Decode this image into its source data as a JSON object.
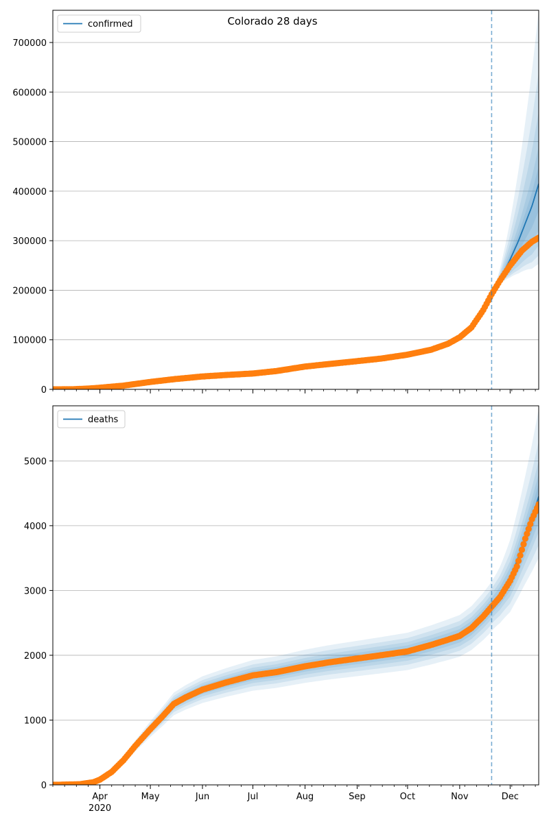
{
  "figure": {
    "title": "Colorado 28 days"
  },
  "x_axis": {
    "type": "date",
    "range": [
      "2020-03-04",
      "2020-12-18"
    ],
    "ticks": [
      {
        "date": "2020-04-01",
        "label": "Apr",
        "sublabel": "2020"
      },
      {
        "date": "2020-05-01",
        "label": "May"
      },
      {
        "date": "2020-06-01",
        "label": "Jun"
      },
      {
        "date": "2020-07-01",
        "label": "Jul"
      },
      {
        "date": "2020-08-01",
        "label": "Aug"
      },
      {
        "date": "2020-09-01",
        "label": "Sep"
      },
      {
        "date": "2020-10-01",
        "label": "Oct"
      },
      {
        "date": "2020-11-01",
        "label": "Nov"
      },
      {
        "date": "2020-12-01",
        "label": "Dec"
      }
    ],
    "forecast_marker_date": "2020-11-20"
  },
  "colors": {
    "model_line": "#1f77b4",
    "observed": "#ff7f0e",
    "band": "#1f77b4",
    "marker_line": "#1f77b4",
    "grid": "#b0b0b0"
  },
  "chart_data": [
    {
      "type": "line",
      "legend": "confirmed",
      "legend_position": "top-left",
      "ylim": [
        0,
        765000
      ],
      "yticks": [
        {
          "value": 0,
          "label": "0"
        },
        {
          "value": 100000,
          "label": "100000"
        },
        {
          "value": 200000,
          "label": "200000"
        },
        {
          "value": 300000,
          "label": "300000"
        },
        {
          "value": 400000,
          "label": "400000"
        },
        {
          "value": 500000,
          "label": "500000"
        },
        {
          "value": 600000,
          "label": "600000"
        },
        {
          "value": 700000,
          "label": "700000"
        }
      ],
      "grid_y": true,
      "knots": [
        [
          "2020-03-04",
          0
        ],
        [
          "2020-03-15",
          150
        ],
        [
          "2020-03-25",
          1500
        ],
        [
          "2020-04-01",
          3300
        ],
        [
          "2020-04-15",
          7500
        ],
        [
          "2020-05-01",
          15000
        ],
        [
          "2020-05-15",
          20500
        ],
        [
          "2020-06-01",
          26000
        ],
        [
          "2020-06-15",
          29000
        ],
        [
          "2020-07-01",
          32000
        ],
        [
          "2020-07-15",
          37000
        ],
        [
          "2020-08-01",
          46000
        ],
        [
          "2020-08-15",
          51000
        ],
        [
          "2020-09-01",
          57000
        ],
        [
          "2020-09-15",
          62000
        ],
        [
          "2020-10-01",
          70000
        ],
        [
          "2020-10-15",
          80000
        ],
        [
          "2020-10-25",
          92000
        ],
        [
          "2020-11-01",
          105000
        ],
        [
          "2020-11-08",
          125000
        ],
        [
          "2020-11-15",
          160000
        ],
        [
          "2020-11-20",
          192000
        ],
        [
          "2020-11-25",
          220000
        ],
        [
          "2020-12-01",
          250000
        ],
        [
          "2020-12-08",
          280000
        ],
        [
          "2020-12-14",
          298000
        ],
        [
          "2020-12-18",
          306000
        ]
      ],
      "model_forecast": [
        [
          "2020-11-20",
          193000
        ],
        [
          "2020-11-25",
          222000
        ],
        [
          "2020-12-01",
          262000
        ],
        [
          "2020-12-06",
          300000
        ],
        [
          "2020-12-10",
          335000
        ],
        [
          "2020-12-14",
          370000
        ],
        [
          "2020-12-18",
          415000
        ]
      ],
      "bands": [
        {
          "level": "outer",
          "upper": [
            765000
          ],
          "lower": [
            253000
          ]
        },
        {
          "level": "wide",
          "upper": [
            640000
          ],
          "lower": [
            270000
          ]
        },
        {
          "level": "mid",
          "upper": [
            560000
          ],
          "lower": [
            290000
          ]
        },
        {
          "level": "inner",
          "upper": [
            490000
          ],
          "lower": [
            320000
          ]
        },
        {
          "level": "core",
          "upper": [
            450000
          ],
          "lower": [
            360000
          ]
        }
      ],
      "band_spread_fraction": [
        0,
        0,
        0,
        0,
        0
      ],
      "band_start": "2020-11-20"
    },
    {
      "type": "line",
      "legend": "deaths",
      "legend_position": "top-left",
      "ylim": [
        0,
        5850
      ],
      "yticks": [
        {
          "value": 0,
          "label": "0"
        },
        {
          "value": 1000,
          "label": "1000"
        },
        {
          "value": 2000,
          "label": "2000"
        },
        {
          "value": 3000,
          "label": "3000"
        },
        {
          "value": 4000,
          "label": "4000"
        },
        {
          "value": 5000,
          "label": "5000"
        }
      ],
      "grid_y": true,
      "knots": [
        [
          "2020-03-04",
          0
        ],
        [
          "2020-03-20",
          10
        ],
        [
          "2020-03-28",
          40
        ],
        [
          "2020-04-01",
          80
        ],
        [
          "2020-04-08",
          200
        ],
        [
          "2020-04-15",
          380
        ],
        [
          "2020-04-22",
          600
        ],
        [
          "2020-05-01",
          860
        ],
        [
          "2020-05-08",
          1050
        ],
        [
          "2020-05-15",
          1250
        ],
        [
          "2020-05-22",
          1350
        ],
        [
          "2020-06-01",
          1470
        ],
        [
          "2020-06-15",
          1580
        ],
        [
          "2020-07-01",
          1690
        ],
        [
          "2020-07-15",
          1740
        ],
        [
          "2020-08-01",
          1830
        ],
        [
          "2020-08-15",
          1890
        ],
        [
          "2020-09-01",
          1950
        ],
        [
          "2020-09-15",
          2000
        ],
        [
          "2020-10-01",
          2060
        ],
        [
          "2020-10-15",
          2160
        ],
        [
          "2020-10-25",
          2240
        ],
        [
          "2020-11-01",
          2300
        ],
        [
          "2020-11-08",
          2420
        ],
        [
          "2020-11-15",
          2600
        ],
        [
          "2020-11-20",
          2750
        ],
        [
          "2020-11-25",
          2900
        ],
        [
          "2020-12-01",
          3150
        ],
        [
          "2020-12-05",
          3370
        ],
        [
          "2020-12-10",
          3800
        ],
        [
          "2020-12-14",
          4100
        ],
        [
          "2020-12-18",
          4330
        ]
      ],
      "model_forecast": [
        [
          "2020-11-20",
          2760
        ],
        [
          "2020-11-25",
          2920
        ],
        [
          "2020-12-01",
          3180
        ],
        [
          "2020-12-06",
          3520
        ],
        [
          "2020-12-10",
          3820
        ],
        [
          "2020-12-14",
          4120
        ],
        [
          "2020-12-18",
          4450
        ]
      ],
      "bands": [
        {
          "level": "outer",
          "upper": [
            5800
          ],
          "lower": [
            3500
          ]
        },
        {
          "level": "wide",
          "upper": [
            5300
          ],
          "lower": [
            3700
          ]
        },
        {
          "level": "mid",
          "upper": [
            5000
          ],
          "lower": [
            3900
          ]
        },
        {
          "level": "inner",
          "upper": [
            4800
          ],
          "lower": [
            4050
          ]
        },
        {
          "level": "core",
          "upper": [
            4650
          ],
          "lower": [
            4200
          ]
        }
      ],
      "band_spread_fraction": [
        0.14,
        0.1,
        0.07,
        0.045,
        0.02
      ],
      "band_start": "2020-03-25"
    }
  ]
}
